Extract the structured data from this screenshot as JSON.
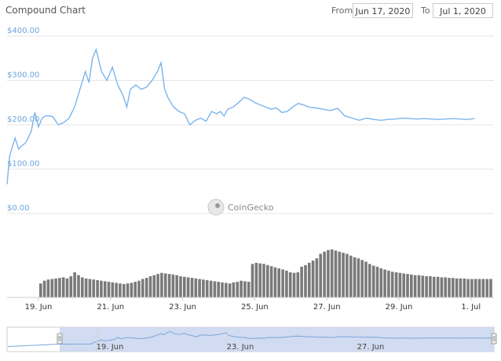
{
  "header": {
    "title": "Compound Chart",
    "from_label": "From",
    "from_value": "Jun 17, 2020",
    "to_label": "To",
    "to_value": "Jul 1, 2020"
  },
  "watermark": "CoinGecko",
  "colors": {
    "price_line": "#7cb5ec",
    "volume_bar": "#7a7a7a",
    "navigator_fill": "#c9d5ee",
    "navigator_line": "#7aa7dc"
  },
  "chart_data": {
    "type": "line",
    "y_ticks": [
      "$400.00",
      "$300.00",
      "$200.00",
      "$100.00",
      "$0.00"
    ],
    "ylim": [
      0,
      400
    ],
    "x_ticks": [
      "19. Jun",
      "21. Jun",
      "23. Jun",
      "25. Jun",
      "27. Jun",
      "29. Jun",
      "1. Jul"
    ],
    "navigator_ticks": [
      "19. Jun",
      "23. Jun",
      "27. Jun"
    ],
    "series": [
      {
        "type": "line",
        "x": [
          0.0,
          0.3,
          0.7,
          1.0,
          1.2,
          1.35,
          1.45,
          1.5,
          1.65,
          1.8,
          1.9,
          2.0,
          2.1,
          2.2,
          2.3,
          2.4,
          2.55,
          2.7,
          2.85,
          3.0,
          3.15,
          3.3,
          3.4,
          3.5,
          3.6,
          3.75,
          3.9,
          4.05,
          4.2,
          4.35,
          4.45,
          4.55,
          4.7,
          4.85,
          5.0,
          5.15,
          5.3,
          5.4,
          5.5,
          5.6,
          5.75,
          5.9,
          6.05,
          6.2,
          6.35,
          6.5,
          6.65,
          6.8,
          6.95,
          7.05,
          7.15,
          7.25,
          7.4,
          7.55,
          7.7,
          7.85,
          8.0,
          8.15,
          8.3,
          8.45,
          8.6,
          8.75,
          8.9,
          9.05,
          9.2,
          9.35,
          9.5,
          9.7,
          9.9,
          10.1,
          10.3,
          10.5,
          10.7,
          10.9,
          11.1,
          11.3,
          11.5,
          11.7,
          11.9,
          12.1,
          12.3,
          12.5,
          12.7,
          12.9,
          13.1,
          13.3,
          13.5,
          13.7,
          13.9,
          14.1
        ],
        "y": [
          67,
          66,
          68,
          66,
          130,
          170,
          145,
          150,
          160,
          185,
          228,
          195,
          215,
          220,
          220,
          218,
          200,
          205,
          215,
          240,
          280,
          320,
          295,
          350,
          370,
          320,
          300,
          330,
          290,
          265,
          240,
          280,
          290,
          280,
          285,
          300,
          320,
          340,
          280,
          260,
          240,
          230,
          225,
          200,
          210,
          215,
          208,
          230,
          225,
          230,
          220,
          235,
          240,
          250,
          262,
          258,
          250,
          245,
          240,
          235,
          238,
          228,
          230,
          240,
          248,
          245,
          240,
          238,
          235,
          232,
          237,
          220,
          215,
          210,
          215,
          212,
          210,
          212,
          213,
          215,
          214,
          213,
          214,
          213,
          212,
          213,
          214,
          213,
          212,
          214
        ]
      },
      {
        "name": "volume",
        "type": "bar",
        "values": [
          25,
          30,
          32,
          33,
          34,
          35,
          36,
          34,
          38,
          45,
          40,
          36,
          34,
          33,
          32,
          31,
          30,
          29,
          28,
          27,
          26,
          25,
          24,
          25,
          26,
          28,
          30,
          33,
          35,
          38,
          40,
          42,
          44,
          43,
          42,
          41,
          40,
          38,
          37,
          36,
          35,
          34,
          33,
          32,
          31,
          30,
          29,
          28,
          27,
          26,
          25,
          27,
          28,
          30,
          29,
          28,
          60,
          62,
          61,
          60,
          58,
          56,
          54,
          52,
          50,
          48,
          45,
          44,
          45,
          55,
          58,
          62,
          66,
          70,
          78,
          82,
          85,
          86,
          84,
          82,
          80,
          78,
          75,
          72,
          70,
          67,
          64,
          60,
          57,
          55,
          52,
          50,
          48,
          46,
          45,
          44,
          43,
          42,
          41,
          40,
          40,
          39,
          38,
          38,
          37,
          37,
          36,
          36,
          35,
          35,
          34,
          34,
          34,
          33,
          33,
          33,
          33,
          33,
          33,
          33
        ]
      }
    ]
  }
}
